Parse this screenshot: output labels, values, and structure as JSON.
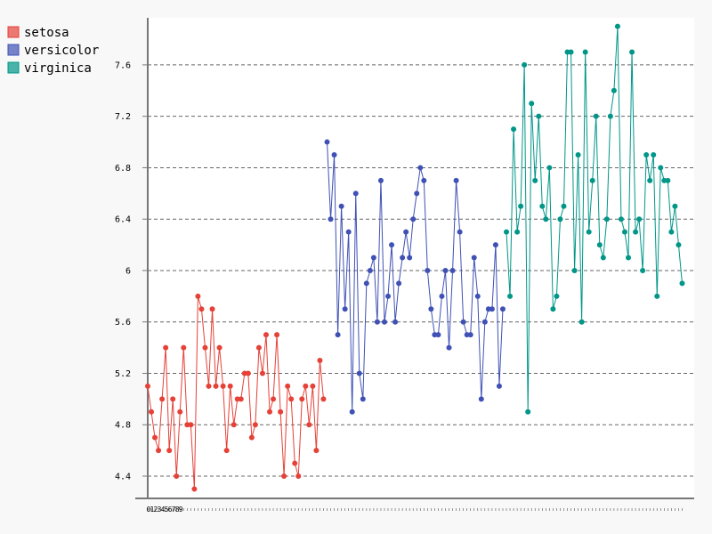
{
  "chart_data": {
    "type": "line",
    "title": "",
    "xlabel": "",
    "ylabel": "",
    "x": {
      "type": "index",
      "start": 0,
      "count": 150,
      "visible_tick_labels": [
        "0",
        "1",
        "2",
        "3",
        "4",
        "5",
        "6",
        "7",
        "8",
        "9"
      ]
    },
    "ylim": [
      4.2,
      8.0
    ],
    "y_ticks": [
      4.4,
      4.8,
      5.2,
      5.6,
      6,
      6.4,
      6.8,
      7.2,
      7.6
    ],
    "y_tick_labels": [
      "4.4",
      "4.8",
      "5.2",
      "5.6",
      "6",
      "6.4",
      "6.8",
      "7.2",
      "7.6"
    ],
    "grid": "horizontal dashed",
    "legend_position": "top-left",
    "series": [
      {
        "name": "setosa",
        "color": "#e64137",
        "start_index": 0,
        "values": [
          5.1,
          4.9,
          4.7,
          4.6,
          5.0,
          5.4,
          4.6,
          5.0,
          4.4,
          4.9,
          5.4,
          4.8,
          4.8,
          4.3,
          5.8,
          5.7,
          5.4,
          5.1,
          5.7,
          5.1,
          5.4,
          5.1,
          4.6,
          5.1,
          4.8,
          5.0,
          5.0,
          5.2,
          5.2,
          4.7,
          4.8,
          5.4,
          5.2,
          5.5,
          4.9,
          5.0,
          5.5,
          4.9,
          4.4,
          5.1,
          5.0,
          4.5,
          4.4,
          5.0,
          5.1,
          4.8,
          5.1,
          4.6,
          5.3,
          5.0
        ]
      },
      {
        "name": "versicolor",
        "color": "#3f51b5",
        "start_index": 50,
        "values": [
          7.0,
          6.4,
          6.9,
          5.5,
          6.5,
          5.7,
          6.3,
          4.9,
          6.6,
          5.2,
          5.0,
          5.9,
          6.0,
          6.1,
          5.6,
          6.7,
          5.6,
          5.8,
          6.2,
          5.6,
          5.9,
          6.1,
          6.3,
          6.1,
          6.4,
          6.6,
          6.8,
          6.7,
          6.0,
          5.7,
          5.5,
          5.5,
          5.8,
          6.0,
          5.4,
          6.0,
          6.7,
          6.3,
          5.6,
          5.5,
          5.5,
          6.1,
          5.8,
          5.0,
          5.6,
          5.7,
          5.7,
          6.2,
          5.1,
          5.7
        ]
      },
      {
        "name": "virginica",
        "color": "#009688",
        "start_index": 100,
        "values": [
          6.3,
          5.8,
          7.1,
          6.3,
          6.5,
          7.6,
          4.9,
          7.3,
          6.7,
          7.2,
          6.5,
          6.4,
          6.8,
          5.7,
          5.8,
          6.4,
          6.5,
          7.7,
          7.7,
          6.0,
          6.9,
          5.6,
          7.7,
          6.3,
          6.7,
          7.2,
          6.2,
          6.1,
          6.4,
          7.2,
          7.4,
          7.9,
          6.4,
          6.3,
          6.1,
          7.7,
          6.3,
          6.4,
          6.0,
          6.9,
          6.7,
          6.9,
          5.8,
          6.8,
          6.7,
          6.7,
          6.3,
          6.5,
          6.2,
          5.9
        ]
      }
    ]
  }
}
